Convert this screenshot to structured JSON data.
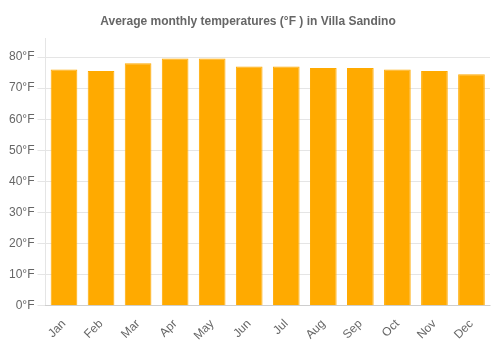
{
  "chart_data": {
    "type": "bar",
    "title": "Average monthly temperatures (°F ) in Villa Sandino",
    "categories": [
      "Jan",
      "Feb",
      "Mar",
      "Apr",
      "May",
      "Jun",
      "Jul",
      "Aug",
      "Sep",
      "Oct",
      "Nov",
      "Dec"
    ],
    "values": [
      76.0,
      75.5,
      78.0,
      79.5,
      79.5,
      77.0,
      77.0,
      76.5,
      76.5,
      76.0,
      75.5,
      74.5
    ],
    "color": "#FFAA00",
    "ylim": [
      0,
      86
    ],
    "yticks": [
      {
        "value": 0,
        "label": "0°F"
      },
      {
        "value": 10,
        "label": "10°F"
      },
      {
        "value": 20,
        "label": "20°F"
      },
      {
        "value": 30,
        "label": "30°F"
      },
      {
        "value": 40,
        "label": "40°F"
      },
      {
        "value": 50,
        "label": "50°F"
      },
      {
        "value": 60,
        "label": "60°F"
      },
      {
        "value": 70,
        "label": "70°F"
      },
      {
        "value": 80,
        "label": "80°F"
      }
    ],
    "grid": true
  }
}
